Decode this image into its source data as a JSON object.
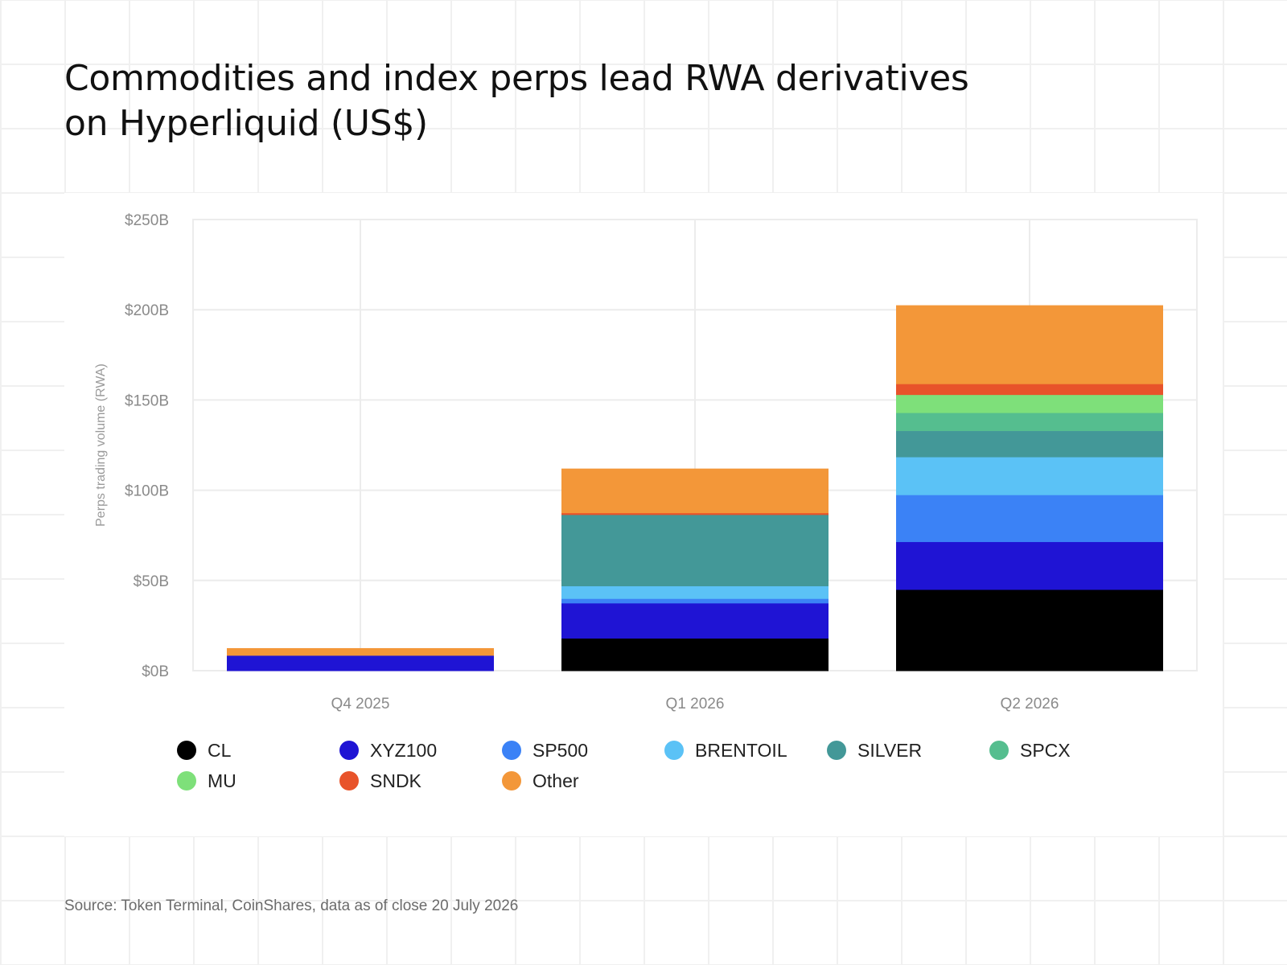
{
  "title": {
    "line1": "Commodities and index perps lead RWA derivatives",
    "line2": "on Hyperliquid (US$)"
  },
  "source": "Source: Token Terminal, CoinShares, data as of close 20 July 2026",
  "chart_data": {
    "type": "bar",
    "stacked": true,
    "title": "Commodities and index perps lead RWA derivatives on Hyperliquid (US$)",
    "xlabel": "",
    "ylabel": "Perps trading volume (RWA)",
    "ylim": [
      0,
      250
    ],
    "y_unit": "US$ billions",
    "y_ticks": [
      0,
      50,
      100,
      150,
      200,
      250
    ],
    "y_tick_labels": [
      "$0B",
      "$50B",
      "$100B",
      "$150B",
      "$200B",
      "$250B"
    ],
    "grid": true,
    "legend_position": "bottom",
    "categories": [
      "Q4 2025",
      "Q1 2026",
      "Q2 2026"
    ],
    "series": [
      {
        "name": "CL",
        "color": "#000000",
        "values": [
          0,
          18,
          45
        ]
      },
      {
        "name": "XYZ100",
        "color": "#1f14d4",
        "values": [
          8.5,
          19.5,
          26.5
        ]
      },
      {
        "name": "SP500",
        "color": "#3b82f6",
        "values": [
          0,
          2.5,
          26
        ]
      },
      {
        "name": "BRENTOIL",
        "color": "#5bc2f6",
        "values": [
          0,
          7,
          21
        ]
      },
      {
        "name": "SILVER",
        "color": "#439898",
        "values": [
          0,
          39.5,
          14.5
        ]
      },
      {
        "name": "SPCX",
        "color": "#55be8f",
        "values": [
          0,
          0,
          10
        ]
      },
      {
        "name": "MU",
        "color": "#7ee07a",
        "values": [
          0,
          0,
          10
        ]
      },
      {
        "name": "SNDK",
        "color": "#e8532a",
        "values": [
          0,
          1,
          6
        ]
      },
      {
        "name": "Other",
        "color": "#f39739",
        "values": [
          4,
          24.5,
          43.5
        ]
      }
    ]
  }
}
